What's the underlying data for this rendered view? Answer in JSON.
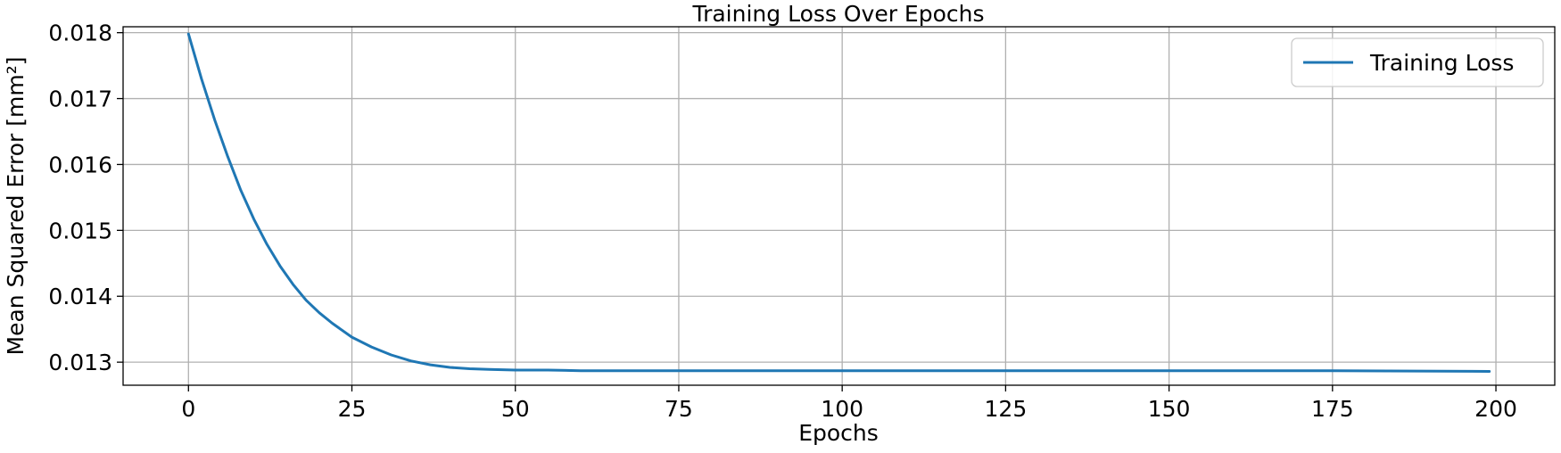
{
  "chart_data": {
    "type": "line",
    "title": "Training Loss Over Epochs",
    "xlabel": "Epochs",
    "ylabel": "Mean Squared Error [mm²]",
    "xlim": [
      -10,
      209
    ],
    "ylim": [
      0.01265,
      0.01809
    ],
    "xticks": [
      0,
      25,
      50,
      75,
      100,
      125,
      150,
      175,
      200
    ],
    "xtick_labels": [
      "0",
      "25",
      "50",
      "75",
      "100",
      "125",
      "150",
      "175",
      "200"
    ],
    "yticks": [
      0.013,
      0.014,
      0.015,
      0.016,
      0.017,
      0.018
    ],
    "ytick_labels": [
      "0.013",
      "0.014",
      "0.015",
      "0.016",
      "0.017",
      "0.018"
    ],
    "grid": true,
    "legend_position": "top-right",
    "series": [
      {
        "name": "Training Loss",
        "color": "#1f77b4",
        "x": [
          0,
          2,
          4,
          6,
          8,
          10,
          12,
          14,
          16,
          18,
          20,
          22,
          25,
          28,
          31,
          34,
          37,
          40,
          43,
          46,
          50,
          55,
          60,
          70,
          80,
          100,
          125,
          150,
          175,
          199
        ],
        "y": [
          0.01798,
          0.0173,
          0.01668,
          0.01612,
          0.01561,
          0.01517,
          0.01479,
          0.01446,
          0.01418,
          0.01394,
          0.01375,
          0.01359,
          0.01338,
          0.01323,
          0.01311,
          0.01302,
          0.01296,
          0.01292,
          0.0129,
          0.01289,
          0.01288,
          0.01288,
          0.01287,
          0.01287,
          0.01287,
          0.01287,
          0.01287,
          0.01287,
          0.01287,
          0.01286
        ]
      }
    ]
  }
}
